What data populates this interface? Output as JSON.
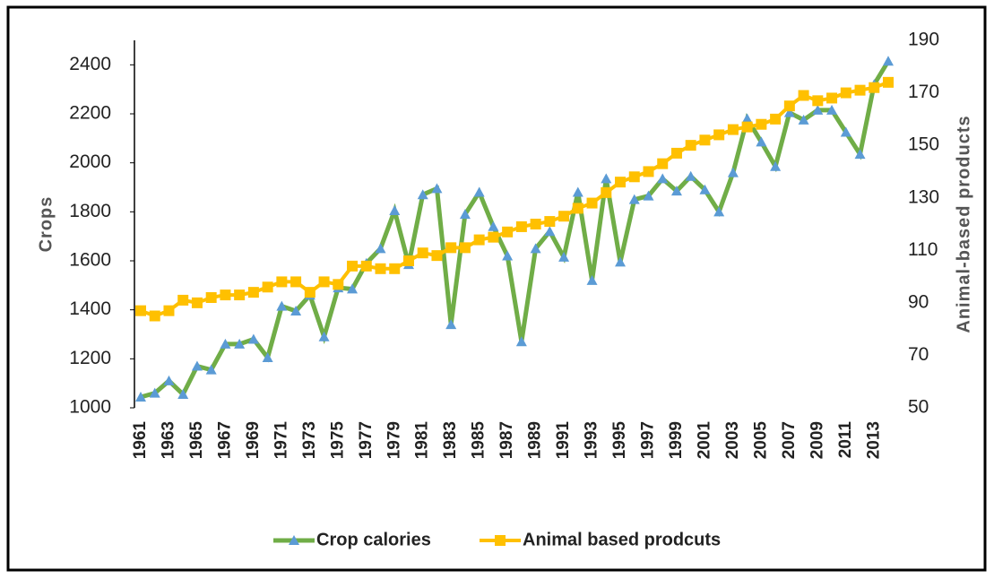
{
  "chart_data": {
    "type": "line",
    "categories": [
      "1961",
      null,
      "1963",
      null,
      "1965",
      null,
      "1967",
      null,
      "1969",
      null,
      "1971",
      null,
      "1973",
      null,
      "1975",
      null,
      "1977",
      null,
      "1979",
      null,
      "1981",
      null,
      "1983",
      null,
      "1985",
      null,
      "1987",
      null,
      "1989",
      null,
      "1991",
      null,
      "1993",
      null,
      "1995",
      null,
      "1997",
      null,
      "1999",
      null,
      "2001",
      null,
      "2003",
      null,
      "2005",
      null,
      "2007",
      null,
      "2009",
      null,
      "2011",
      null,
      "2013",
      null
    ],
    "series": [
      {
        "name": "Crop calories",
        "color": "#70ad47",
        "marker_color": "#5b9bd5",
        "axis": "y",
        "values": [
          1044,
          1060,
          1110,
          1055,
          1170,
          1155,
          1260,
          1260,
          1280,
          1205,
          1415,
          1395,
          1460,
          1290,
          1490,
          1485,
          1590,
          1650,
          1805,
          1585,
          1870,
          1895,
          1340,
          1790,
          1880,
          1740,
          1620,
          1270,
          1650,
          1720,
          1615,
          1880,
          1520,
          1935,
          1595,
          1850,
          1865,
          1935,
          1885,
          1945,
          1890,
          1800,
          1960,
          2180,
          2085,
          1985,
          2205,
          2175,
          2215,
          2215,
          2125,
          2035,
          2320,
          2415
        ]
      },
      {
        "name": "Animal based prodcuts",
        "color": "#ffc000",
        "marker_color": "#ffc000",
        "axis": "y2",
        "values": [
          87,
          85,
          87,
          91,
          90,
          92,
          93,
          93,
          94,
          96,
          98,
          98,
          94,
          98,
          97,
          104,
          104,
          103,
          103,
          106,
          109,
          108,
          111,
          111,
          114,
          115,
          117,
          119,
          120,
          121,
          123,
          126,
          128,
          132,
          136,
          138,
          140,
          143,
          147,
          150,
          152,
          154,
          156,
          157,
          158,
          160,
          165,
          169,
          167,
          168,
          170,
          171,
          172,
          174
        ]
      }
    ],
    "y_label": "Crops",
    "y2_label": "Animal-based products",
    "ylim": [
      1000,
      2500
    ],
    "yticks": [
      1000,
      1200,
      1400,
      1600,
      1800,
      2000,
      2200,
      2400
    ],
    "y2lim": [
      50,
      190
    ],
    "y2ticks": [
      50,
      70,
      90,
      110,
      130,
      150,
      170,
      190
    ],
    "grid": false
  }
}
